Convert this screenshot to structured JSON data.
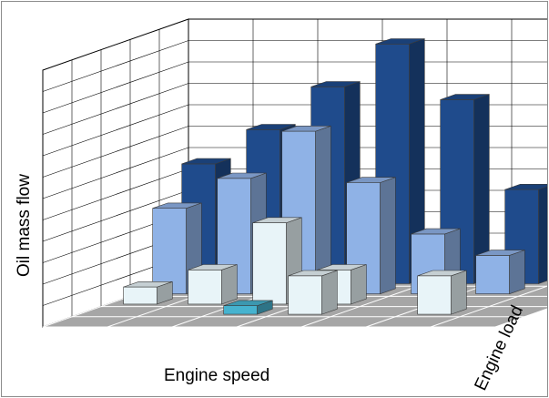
{
  "chart_data": {
    "type": "bar3d",
    "title": "",
    "xlabel": "Engine speed",
    "ylabel": "Engine load",
    "zlabel": "Oil mass flow",
    "tick_labels_shown": false,
    "grid": true,
    "colors": {
      "series_front": "#e8f4f8",
      "series_front_highlight": "#46b3cf",
      "series_mid": "#8fb2e6",
      "series_back": "#1f4b8c",
      "floor": "#a6a6a6"
    },
    "series": [
      {
        "row": 0,
        "color_key": "series_front",
        "values": [
          null,
          null,
          null,
          null,
          null,
          null,
          null
        ]
      },
      {
        "row": 1,
        "color_key": "series_front",
        "values": [
          null,
          null,
          null,
          0.9,
          null,
          0.9,
          null
        ]
      },
      {
        "row": 2,
        "color_key": "series_front",
        "values": [
          0.4,
          0.8,
          1.9,
          0.8,
          0.0,
          0.0,
          null
        ]
      },
      {
        "row": 3,
        "color_key": "series_mid",
        "values": [
          2.0,
          2.7,
          3.8,
          2.6,
          1.4,
          0.9,
          null
        ]
      },
      {
        "row": 4,
        "color_key": "series_back",
        "values": [
          2.8,
          3.6,
          4.6,
          5.6,
          4.3,
          2.2,
          1.1
        ]
      }
    ],
    "highlight": {
      "row": 1,
      "col": 2,
      "value": 0.2
    }
  }
}
